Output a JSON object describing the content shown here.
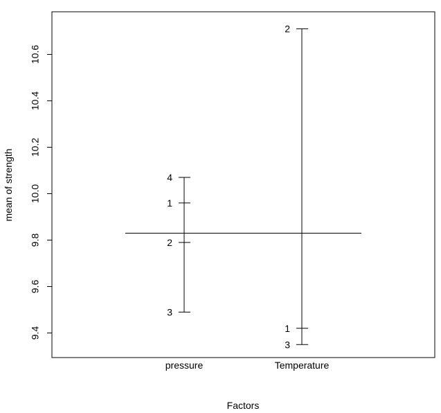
{
  "chart_data": {
    "type": "factor-means",
    "title": "",
    "xlabel": "Factors",
    "ylabel": "mean of strength",
    "ylim": [
      9.3,
      10.78
    ],
    "y_ticks": [
      9.4,
      9.6,
      9.8,
      10.0,
      10.2,
      10.4,
      10.6
    ],
    "y_tick_labels": [
      "9.4",
      "9.6",
      "9.8",
      "10.0",
      "10.2",
      "10.4",
      "10.6"
    ],
    "grand_mean": 9.83,
    "factors": [
      {
        "name": "pressure",
        "levels": [
          {
            "label": "4",
            "mean": 10.07
          },
          {
            "label": "1",
            "mean": 9.96
          },
          {
            "label": "2",
            "mean": 9.79
          },
          {
            "label": "3",
            "mean": 9.49
          }
        ]
      },
      {
        "name": "Temperature",
        "levels": [
          {
            "label": "2",
            "mean": 10.71
          },
          {
            "label": "1",
            "mean": 9.42
          },
          {
            "label": "3",
            "mean": 9.35
          }
        ]
      }
    ],
    "grid": false,
    "legend": "none"
  }
}
